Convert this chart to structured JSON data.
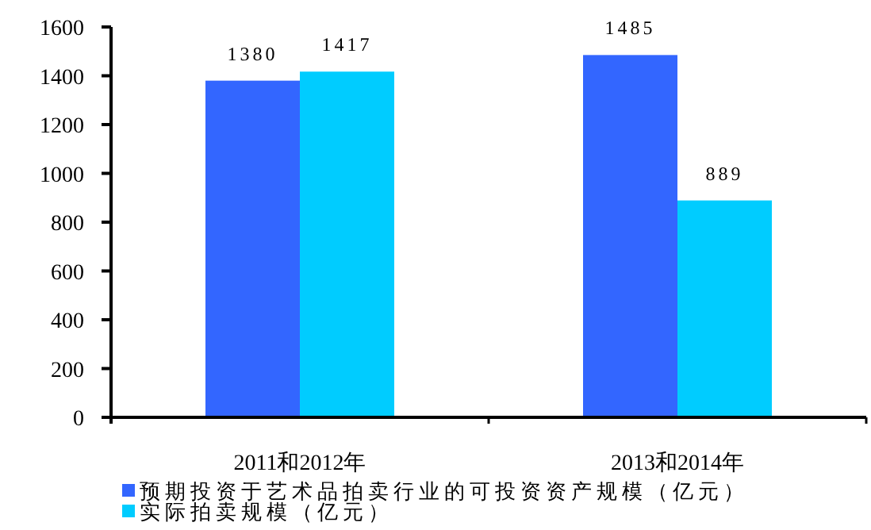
{
  "chart_data": {
    "type": "bar",
    "categories": [
      "2011和2012年",
      "2013和2014年"
    ],
    "series": [
      {
        "name": "预期投资于艺术品拍卖行业的可投资资产规模（亿元）",
        "color": "#3366ff",
        "values": [
          1380,
          1485
        ]
      },
      {
        "name": "实际拍卖规模（亿元）",
        "color": "#00ccff",
        "values": [
          1417,
          889
        ]
      }
    ],
    "ylim": [
      0,
      1600
    ],
    "yticks": [
      0,
      200,
      400,
      600,
      800,
      1000,
      1200,
      1400,
      1600
    ],
    "data_labels": true,
    "legend": "bottom",
    "grid": false
  }
}
